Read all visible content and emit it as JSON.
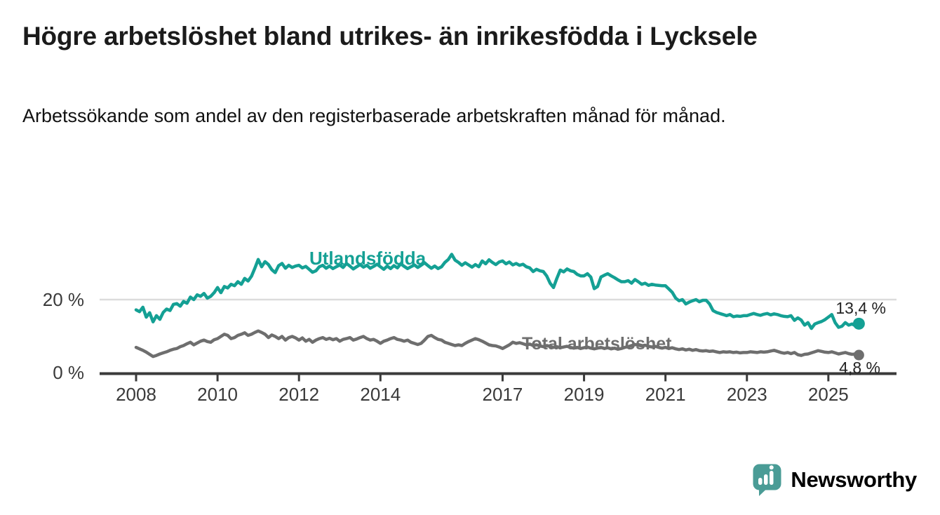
{
  "chart_data": {
    "type": "line",
    "title": "Högre arbetslöshet bland utrikes- än inrikesfödda i Lycksele",
    "subtitle": "Arbetssökande som andel av den registerbaserade arbetskraften månad för månad.",
    "unit": "%",
    "x_start_year": 2008,
    "x_start": "2008-01",
    "x_end": "2025-10",
    "x_step_months": 1,
    "x_axis_ticks": [
      2008,
      2010,
      2012,
      2014,
      2017,
      2019,
      2021,
      2023,
      2025
    ],
    "y_axis": {
      "range": [
        0,
        36
      ],
      "grid_values": [
        20
      ],
      "ticks": [
        {
          "value": 0,
          "label": "0 %"
        },
        {
          "value": 20,
          "label": "20 %"
        }
      ]
    },
    "legend_position": "inline-labels",
    "series": [
      {
        "name": "Utlandsfödda",
        "color": "#14a094",
        "end_label": "13,4 %",
        "last_value": 13.4,
        "values": [
          17.2,
          16.7,
          17.9,
          15.2,
          16.4,
          13.9,
          15.6,
          14.6,
          16.5,
          17.4,
          17.0,
          18.7,
          18.9,
          18.2,
          19.5,
          19.0,
          20.7,
          20.0,
          21.3,
          20.9,
          21.7,
          20.4,
          20.9,
          21.9,
          23.3,
          21.9,
          23.6,
          23.2,
          24.2,
          23.8,
          24.9,
          24.2,
          25.8,
          25.1,
          26.4,
          28.6,
          31.0,
          29.0,
          30.4,
          29.6,
          28.2,
          27.4,
          29.3,
          29.9,
          28.6,
          29.4,
          28.8,
          29.2,
          29.4,
          28.7,
          29.1,
          28.3,
          27.5,
          27.9,
          29.0,
          29.4,
          28.6,
          29.2,
          28.5,
          29.0,
          29.5,
          28.8,
          29.9,
          29.2,
          28.4,
          29.0,
          29.6,
          28.9,
          29.4,
          28.6,
          29.1,
          29.7,
          29.0,
          28.3,
          29.2,
          28.5,
          29.3,
          28.7,
          29.8,
          29.1,
          28.5,
          29.0,
          29.5,
          28.8,
          29.4,
          30.1,
          29.3,
          28.6,
          29.2,
          28.5,
          29.0,
          30.2,
          31.0,
          32.4,
          30.8,
          30.2,
          29.4,
          30.1,
          29.5,
          28.9,
          29.6,
          29.0,
          30.6,
          29.8,
          30.9,
          30.2,
          29.6,
          30.3,
          30.6,
          29.8,
          30.3,
          29.5,
          29.9,
          29.4,
          29.7,
          29.0,
          28.7,
          27.7,
          28.3,
          27.9,
          27.7,
          26.5,
          24.5,
          23.3,
          25.8,
          28.1,
          27.6,
          28.4,
          27.9,
          27.7,
          26.9,
          26.5,
          26.5,
          27.1,
          26.2,
          23.0,
          23.6,
          26.2,
          26.7,
          27.1,
          26.5,
          26.0,
          25.4,
          24.9,
          24.9,
          25.2,
          24.5,
          25.5,
          24.9,
          24.2,
          24.5,
          23.9,
          24.2,
          24.0,
          23.9,
          23.8,
          23.8,
          22.9,
          22.0,
          20.4,
          19.7,
          20.0,
          18.8,
          19.3,
          19.7,
          20.0,
          19.4,
          19.8,
          19.8,
          18.8,
          17.0,
          16.5,
          16.2,
          15.9,
          15.6,
          15.9,
          15.3,
          15.5,
          15.4,
          15.6,
          15.6,
          15.9,
          16.2,
          15.9,
          15.7,
          16.0,
          16.2,
          15.8,
          16.1,
          15.9,
          15.6,
          15.4,
          15.3,
          15.6,
          14.3,
          15.0,
          14.4,
          13.0,
          13.7,
          12.1,
          13.3,
          13.7,
          14.0,
          14.5,
          15.2,
          15.9,
          13.7,
          12.4,
          12.7,
          13.7,
          13.0,
          13.3,
          12.8,
          13.4
        ]
      },
      {
        "name": "Total arbetslöshet",
        "color": "#6e6e6e",
        "end_label": "4,8 %",
        "last_value": 4.8,
        "values": [
          6.9,
          6.5,
          6.1,
          5.6,
          5.0,
          4.4,
          4.7,
          5.1,
          5.4,
          5.7,
          6.1,
          6.4,
          6.6,
          7.1,
          7.4,
          7.9,
          8.3,
          7.6,
          8.1,
          8.6,
          8.9,
          8.5,
          8.3,
          9.0,
          9.3,
          9.9,
          10.5,
          10.2,
          9.3,
          9.6,
          10.2,
          10.5,
          10.9,
          10.2,
          10.5,
          11.0,
          11.4,
          11.0,
          10.5,
          9.6,
          10.3,
          9.9,
          9.3,
          9.9,
          8.9,
          9.6,
          9.9,
          9.5,
          8.9,
          9.5,
          8.6,
          9.1,
          8.3,
          8.9,
          9.3,
          9.6,
          9.1,
          9.4,
          9.0,
          9.3,
          8.6,
          9.1,
          9.3,
          9.6,
          8.9,
          9.2,
          9.6,
          9.9,
          9.3,
          8.9,
          9.1,
          8.6,
          8.0,
          8.6,
          8.9,
          9.3,
          9.6,
          9.1,
          8.9,
          8.6,
          8.9,
          8.3,
          8.0,
          7.7,
          8.0,
          8.9,
          9.9,
          10.2,
          9.6,
          9.1,
          8.9,
          8.3,
          8.0,
          7.7,
          7.4,
          7.6,
          7.4,
          8.0,
          8.5,
          8.9,
          9.3,
          9.0,
          8.6,
          8.1,
          7.6,
          7.4,
          7.3,
          7.0,
          6.6,
          7.1,
          7.6,
          8.3,
          8.0,
          8.2,
          7.9,
          7.6,
          7.8,
          7.4,
          7.6,
          7.3,
          7.1,
          7.4,
          7.2,
          6.9,
          7.1,
          6.8,
          7.0,
          7.2,
          6.9,
          6.7,
          6.9,
          6.6,
          6.8,
          7.0,
          6.7,
          6.5,
          6.7,
          6.9,
          6.6,
          6.8,
          6.5,
          6.7,
          6.4,
          6.6,
          6.9,
          7.1,
          7.4,
          7.7,
          7.5,
          7.3,
          7.5,
          7.2,
          7.0,
          7.2,
          6.9,
          6.7,
          6.9,
          6.6,
          6.8,
          6.5,
          6.3,
          6.5,
          6.2,
          6.4,
          6.1,
          6.3,
          6.0,
          5.9,
          6.0,
          5.8,
          5.9,
          5.7,
          5.5,
          5.7,
          5.6,
          5.7,
          5.5,
          5.6,
          5.4,
          5.5,
          5.5,
          5.7,
          5.6,
          5.5,
          5.7,
          5.6,
          5.7,
          5.9,
          6.1,
          5.8,
          5.5,
          5.3,
          5.5,
          5.2,
          5.5,
          4.9,
          4.7,
          5.0,
          5.1,
          5.4,
          5.7,
          6.0,
          5.8,
          5.6,
          5.5,
          5.7,
          5.4,
          5.1,
          5.3,
          5.5,
          5.2,
          5.0,
          5.1,
          4.8
        ]
      }
    ],
    "colors": {
      "grid": "#dcdcdc",
      "axis": "#3a3a3a",
      "tick_label": "#3a3a3a",
      "value_label": "#242424"
    }
  },
  "branding": {
    "name": "Newsworthy",
    "color": "#4a9c96",
    "icon": "speech-bubble-bar-chart"
  }
}
